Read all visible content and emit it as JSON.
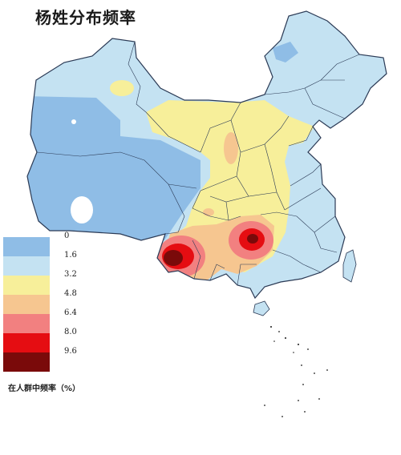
{
  "title": "杨姓分布频率",
  "legend": {
    "bands": [
      {
        "color": "#8fbde6"
      },
      {
        "color": "#c4e2f2"
      },
      {
        "color": "#f7ef9a"
      },
      {
        "color": "#f6c690"
      },
      {
        "color": "#f28080"
      },
      {
        "color": "#e50d12"
      },
      {
        "color": "#7a0a0a"
      }
    ],
    "labels": [
      "0",
      "1.6",
      "3.2",
      "4.8",
      "6.4",
      "8.0",
      "9.6"
    ],
    "caption": "在人群中频率（%）"
  },
  "colors": {
    "low": "#8fbde6",
    "light": "#c4e2f2",
    "yellow": "#f7ef9a",
    "orange": "#f6c690",
    "pink": "#f28080",
    "red": "#e50d12",
    "dark": "#7a0a0a",
    "border": "#2b3a55"
  }
}
